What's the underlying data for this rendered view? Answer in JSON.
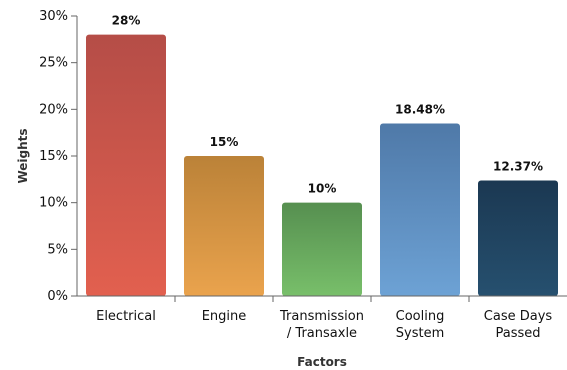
{
  "chart_data": {
    "type": "bar",
    "title": "",
    "xlabel": "Factors",
    "ylabel": "Weights",
    "ylim": [
      0,
      30
    ],
    "yticks": [
      0,
      5,
      10,
      15,
      20,
      25,
      30
    ],
    "ytick_labels": [
      "0%",
      "5%",
      "10%",
      "15%",
      "20%",
      "25%",
      "30%"
    ],
    "categories": [
      [
        "Electrical"
      ],
      [
        "Engine"
      ],
      [
        "Transmission",
        "/ Transaxle"
      ],
      [
        "Cooling",
        "System"
      ],
      [
        "Case Days",
        "Passed"
      ]
    ],
    "values": [
      28,
      15,
      10,
      18.48,
      12.37
    ],
    "value_labels": [
      "28%",
      "15%",
      "10%",
      "18.48%",
      "12.37%"
    ],
    "colors": [
      [
        "#b54d47",
        "#e2604f"
      ],
      [
        "#bb8238",
        "#eaa34d"
      ],
      [
        "#568f50",
        "#78bf6a"
      ],
      [
        "#4f79a8",
        "#6da2d5"
      ],
      [
        "#1b3852",
        "#26506f"
      ]
    ],
    "grid": false,
    "legend": "none"
  }
}
